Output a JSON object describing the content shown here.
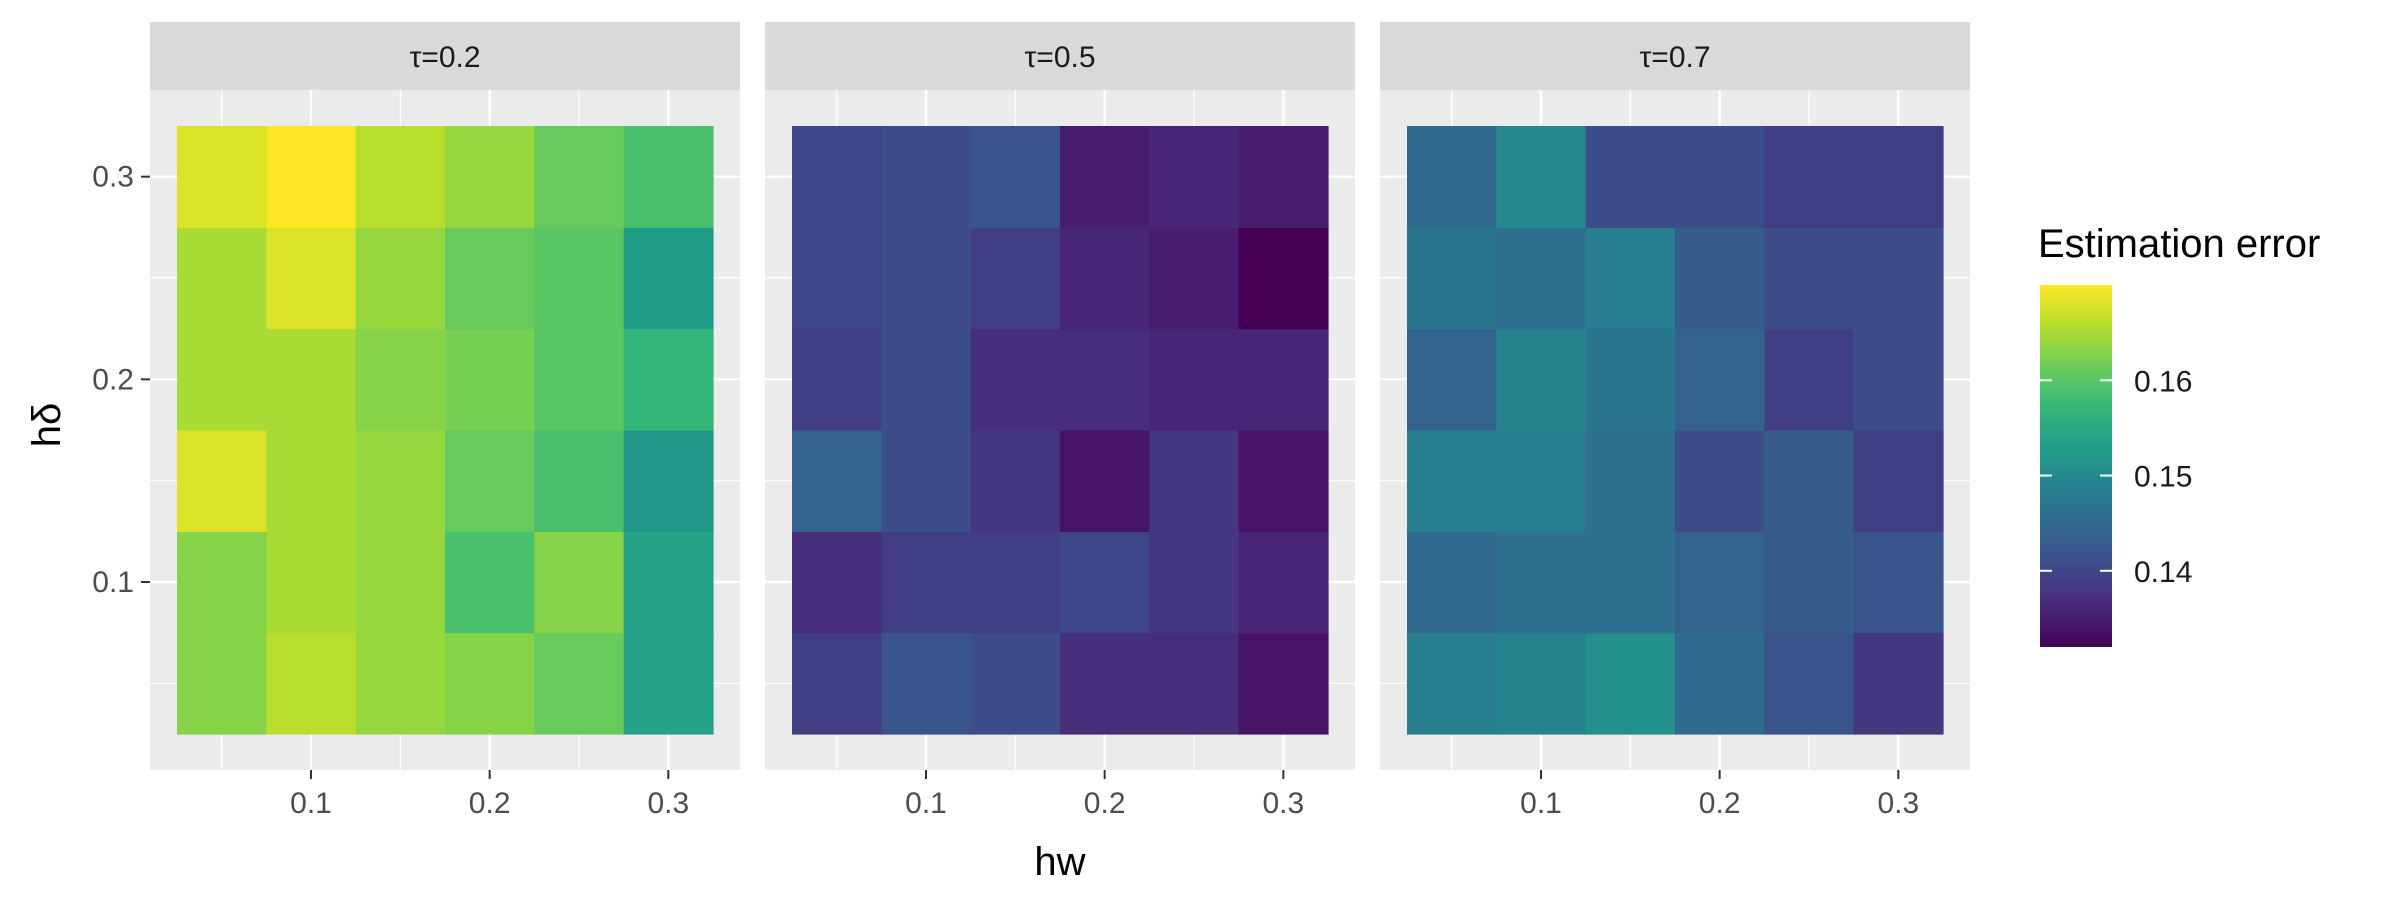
{
  "chart_data": {
    "type": "heatmap",
    "x_values": [
      0.05,
      0.1,
      0.15,
      0.2,
      0.25,
      0.3
    ],
    "y_values": [
      0.05,
      0.1,
      0.15,
      0.2,
      0.25,
      0.3
    ],
    "x_ticks": [
      0.1,
      0.2,
      0.3
    ],
    "y_ticks": [
      0.1,
      0.2,
      0.3
    ],
    "x_tick_labels": [
      "0.1",
      "0.2",
      "0.3"
    ],
    "y_tick_labels": [
      "0.1",
      "0.2",
      "0.3"
    ],
    "xlabel": "hw",
    "ylabel": "hδ",
    "color_scale": "viridis",
    "color_limits": [
      0.132,
      0.17
    ],
    "legend": {
      "title": "Estimation error",
      "ticks": [
        0.14,
        0.15,
        0.16
      ],
      "tick_labels": [
        "0.14",
        "0.15",
        "0.16"
      ],
      "position": "right"
    },
    "grid": true,
    "panels": [
      {
        "label": "τ=0.2",
        "z": [
          [
            0.163,
            0.166,
            0.164,
            0.163,
            0.161,
            0.154
          ],
          [
            0.163,
            0.165,
            0.164,
            0.159,
            0.163,
            0.154
          ],
          [
            0.168,
            0.165,
            0.164,
            0.161,
            0.159,
            0.152
          ],
          [
            0.165,
            0.165,
            0.163,
            0.162,
            0.16,
            0.157
          ],
          [
            0.165,
            0.168,
            0.164,
            0.161,
            0.16,
            0.153
          ],
          [
            0.168,
            0.17,
            0.166,
            0.164,
            0.161,
            0.159
          ]
        ]
      },
      {
        "label": "τ=0.5",
        "z": [
          [
            0.139,
            0.142,
            0.141,
            0.137,
            0.137,
            0.134
          ],
          [
            0.137,
            0.139,
            0.139,
            0.14,
            0.138,
            0.136
          ],
          [
            0.144,
            0.141,
            0.138,
            0.134,
            0.138,
            0.134
          ],
          [
            0.139,
            0.141,
            0.137,
            0.137,
            0.136,
            0.136
          ],
          [
            0.14,
            0.141,
            0.139,
            0.136,
            0.135,
            0.132
          ],
          [
            0.14,
            0.141,
            0.142,
            0.135,
            0.136,
            0.135
          ]
        ]
      },
      {
        "label": "τ=0.7",
        "z": [
          [
            0.148,
            0.149,
            0.151,
            0.145,
            0.142,
            0.138
          ],
          [
            0.145,
            0.146,
            0.146,
            0.144,
            0.143,
            0.142
          ],
          [
            0.148,
            0.148,
            0.146,
            0.141,
            0.143,
            0.139
          ],
          [
            0.144,
            0.149,
            0.147,
            0.144,
            0.139,
            0.141
          ],
          [
            0.147,
            0.146,
            0.148,
            0.143,
            0.141,
            0.141
          ],
          [
            0.145,
            0.15,
            0.141,
            0.141,
            0.139,
            0.139
          ]
        ]
      }
    ]
  }
}
